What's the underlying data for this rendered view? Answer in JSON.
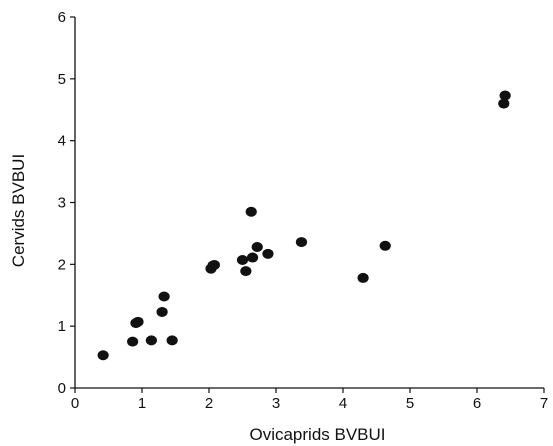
{
  "chart_data": {
    "type": "scatter",
    "title": "",
    "xlabel": "Ovicaprids BVBUI",
    "ylabel": "Cervids BVBUI",
    "xlim": [
      0,
      7
    ],
    "ylim": [
      0,
      6
    ],
    "xticks": [
      "0",
      "1",
      "2",
      "3",
      "4",
      "5",
      "6",
      "7"
    ],
    "yticks": [
      "0",
      "1",
      "2",
      "3",
      "4",
      "5",
      "6"
    ],
    "grid": false,
    "legend": "none",
    "marker_color": "#111111",
    "series": [
      {
        "x": [
          0.42,
          0.86,
          0.91,
          0.94,
          1.14,
          1.3,
          1.33,
          1.45,
          2.03,
          2.06,
          2.08,
          2.5,
          2.55,
          2.63,
          2.65,
          2.72,
          2.88,
          3.38,
          4.3,
          4.63,
          6.4,
          6.42
        ],
        "y": [
          0.53,
          0.75,
          1.05,
          1.07,
          0.77,
          1.23,
          1.48,
          0.77,
          1.93,
          1.98,
          1.99,
          2.07,
          1.89,
          2.85,
          2.11,
          2.28,
          2.17,
          2.36,
          1.78,
          2.3,
          4.6,
          4.73
        ]
      }
    ]
  }
}
